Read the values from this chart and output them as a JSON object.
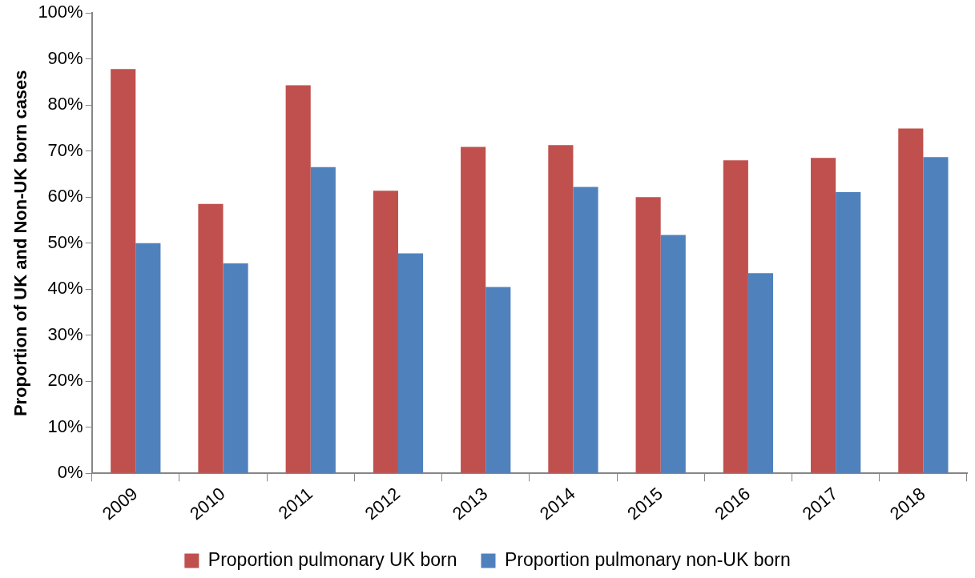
{
  "chart_data": {
    "type": "bar",
    "ylabel": "Proportion of UK and Non-UK born cases",
    "categories": [
      "2009",
      "2010",
      "2011",
      "2012",
      "2013",
      "2014",
      "2015",
      "2016",
      "2017",
      "2018"
    ],
    "series": [
      {
        "name": "Proportion pulmonary UK born",
        "color": "#c0504d",
        "values": [
          87.8,
          58.5,
          84.3,
          61.4,
          70.9,
          71.3,
          60,
          68,
          68.5,
          74.9
        ]
      },
      {
        "name": "Proportion pulmonary non-UK born",
        "color": "#4f81bd",
        "values": [
          50,
          45.6,
          66.5,
          47.8,
          40.5,
          62.2,
          51.8,
          43.5,
          61.1,
          68.7
        ]
      }
    ],
    "ylim": [
      0,
      100
    ],
    "yticks": [
      {
        "value": 0,
        "label": "0%"
      },
      {
        "value": 10,
        "label": "10%"
      },
      {
        "value": 20,
        "label": "20%"
      },
      {
        "value": 30,
        "label": "30%"
      },
      {
        "value": 40,
        "label": "40%"
      },
      {
        "value": 50,
        "label": "50%"
      },
      {
        "value": 60,
        "label": "60%"
      },
      {
        "value": 70,
        "label": "70%"
      },
      {
        "value": 80,
        "label": "80%"
      },
      {
        "value": 90,
        "label": "90%"
      },
      {
        "value": 100,
        "label": "100%"
      }
    ],
    "grid": false,
    "legend": "bottom"
  }
}
